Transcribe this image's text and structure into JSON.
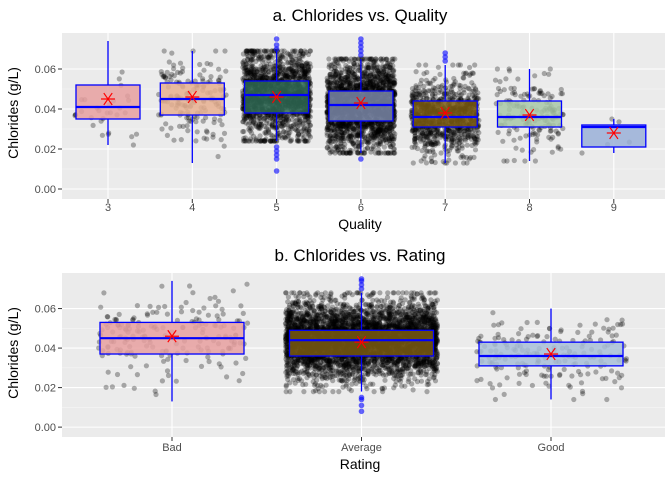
{
  "chart_data": [
    {
      "type": "boxplot",
      "title": "a. Chlorides vs. Quality",
      "xlabel": "Quality",
      "ylabel": "Chlorides (g/L)",
      "ylim": [
        -0.005,
        0.078
      ],
      "y_ticks": [
        "0.00",
        "0.02",
        "0.04",
        "0.06"
      ],
      "y_tick_values": [
        0.0,
        0.02,
        0.04,
        0.06
      ],
      "categories": [
        "3",
        "4",
        "5",
        "6",
        "7",
        "8",
        "9"
      ],
      "fill_colors": [
        "#e8a0a0",
        "#e8b090",
        "#2f6a55",
        "#7a87a8",
        "#7a5a10",
        "#a8c8a8",
        "#9ab0d8"
      ],
      "boxes": [
        {
          "category": "3",
          "q1": 0.035,
          "median": 0.041,
          "q3": 0.052,
          "whisker_low": 0.022,
          "whisker_high": 0.074,
          "mean": 0.045,
          "n_points": 30,
          "outliers": []
        },
        {
          "category": "4",
          "q1": 0.037,
          "median": 0.045,
          "q3": 0.053,
          "whisker_low": 0.013,
          "whisker_high": 0.069,
          "mean": 0.046,
          "n_points": 160,
          "outliers": []
        },
        {
          "category": "5",
          "q1": 0.038,
          "median": 0.047,
          "q3": 0.054,
          "whisker_low": 0.024,
          "whisker_high": 0.069,
          "mean": 0.046,
          "n_points": 1400,
          "outliers": [
            0.009,
            0.015,
            0.017,
            0.019,
            0.021,
            0.07,
            0.072,
            0.075
          ]
        },
        {
          "category": "6",
          "q1": 0.034,
          "median": 0.042,
          "q3": 0.049,
          "whisker_low": 0.018,
          "whisker_high": 0.065,
          "mean": 0.043,
          "n_points": 1900,
          "outliers": [
            0.015,
            0.067,
            0.069,
            0.071,
            0.073,
            0.075
          ]
        },
        {
          "category": "7",
          "q1": 0.031,
          "median": 0.036,
          "q3": 0.044,
          "whisker_low": 0.013,
          "whisker_high": 0.062,
          "mean": 0.038,
          "n_points": 800,
          "outliers": [
            0.064,
            0.066,
            0.068
          ]
        },
        {
          "category": "8",
          "q1": 0.031,
          "median": 0.036,
          "q3": 0.044,
          "whisker_low": 0.014,
          "whisker_high": 0.06,
          "mean": 0.037,
          "n_points": 160,
          "outliers": []
        },
        {
          "category": "9",
          "q1": 0.021,
          "median": 0.031,
          "q3": 0.032,
          "whisker_low": 0.018,
          "whisker_high": 0.035,
          "mean": 0.028,
          "n_points": 5,
          "outliers": []
        }
      ],
      "point_color": "#000000",
      "outlier_color": "#0000ff",
      "box_border_color": "#0000ff",
      "mean_marker_color": "#ff0000",
      "grid": true
    },
    {
      "type": "boxplot",
      "title": "b. Chlorides vs. Rating",
      "xlabel": "Rating",
      "ylabel": "Chlorides (g/L)",
      "ylim": [
        -0.005,
        0.078
      ],
      "y_ticks": [
        "0.00",
        "0.02",
        "0.04",
        "0.06"
      ],
      "y_tick_values": [
        0.0,
        0.02,
        0.04,
        0.06
      ],
      "categories": [
        "Bad",
        "Average",
        "Good"
      ],
      "fill_colors": [
        "#e8a0a0",
        "#7a5a10",
        "#a8c0d8"
      ],
      "boxes": [
        {
          "category": "Bad",
          "q1": 0.037,
          "median": 0.045,
          "q3": 0.053,
          "whisker_low": 0.013,
          "whisker_high": 0.074,
          "mean": 0.046,
          "n_points": 190,
          "outliers": []
        },
        {
          "category": "Average",
          "q1": 0.036,
          "median": 0.044,
          "q3": 0.049,
          "whisker_low": 0.018,
          "whisker_high": 0.068,
          "mean": 0.043,
          "n_points": 4000,
          "outliers": [
            0.008,
            0.011,
            0.014,
            0.015,
            0.07,
            0.072,
            0.074,
            0.075
          ]
        },
        {
          "category": "Good",
          "q1": 0.031,
          "median": 0.036,
          "q3": 0.043,
          "whisker_low": 0.014,
          "whisker_high": 0.06,
          "mean": 0.037,
          "n_points": 190,
          "outliers": []
        }
      ],
      "point_color": "#000000",
      "outlier_color": "#0000ff",
      "box_border_color": "#0000ff",
      "mean_marker_color": "#ff0000",
      "grid": true
    }
  ]
}
